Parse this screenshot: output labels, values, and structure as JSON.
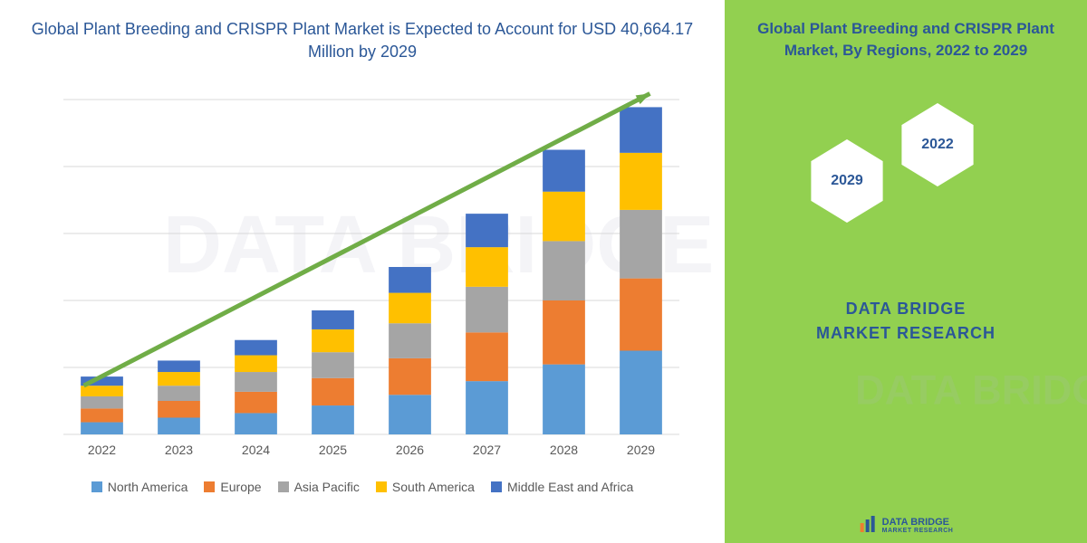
{
  "chart": {
    "type": "stacked-bar",
    "title": "Global Plant Breeding and CRISPR Plant Market is Expected to Account for USD 40,664.17 Million by 2029",
    "title_color": "#2b5797",
    "title_fontsize": 18,
    "categories": [
      "2022",
      "2023",
      "2024",
      "2025",
      "2026",
      "2027",
      "2028",
      "2029"
    ],
    "series": [
      {
        "name": "North America",
        "color": "#5b9bd5",
        "values": [
          16,
          22,
          28,
          38,
          52,
          70,
          92,
          110
        ]
      },
      {
        "name": "Europe",
        "color": "#ed7d31",
        "values": [
          18,
          22,
          28,
          36,
          48,
          64,
          84,
          95
        ]
      },
      {
        "name": "Asia Pacific",
        "color": "#a5a5a5",
        "values": [
          16,
          20,
          26,
          34,
          46,
          60,
          78,
          90
        ]
      },
      {
        "name": "South America",
        "color": "#ffc000",
        "values": [
          14,
          18,
          22,
          30,
          40,
          52,
          65,
          75
        ]
      },
      {
        "name": "Middle East and Africa",
        "color": "#4472c4",
        "values": [
          12,
          15,
          20,
          25,
          34,
          44,
          55,
          60
        ]
      }
    ],
    "axis_label_fontsize": 14,
    "axis_label_color": "#595959",
    "background_color": "#ffffff",
    "gridline_color": "#d9d9d9",
    "ylim": [
      0,
      440
    ],
    "bar_width": 0.55,
    "arrow_color": "#70ad47",
    "arrow_stroke_width": 5,
    "legend_fontsize": 14,
    "legend_color": "#595959"
  },
  "side": {
    "title": "Global Plant Breeding and CRISPR Plant Market, By Regions, 2022 to 2029",
    "title_color": "#2b5797",
    "title_fontsize": 17,
    "background_color": "#92d050",
    "hex_fill": "#ffffff",
    "hex_stroke": "#92d050",
    "hex_stroke_width": 4,
    "hex_label_color": "#2b5797",
    "hex1_label": "2029",
    "hex2_label": "2022",
    "brand_line1": "DATA BRIDGE",
    "brand_line2": "MARKET RESEARCH",
    "brand_color": "#2b5797",
    "brand_fontsize": 18
  },
  "watermark": {
    "text": "DATA BRIDGE",
    "color": "rgba(180,180,200,0.15)"
  },
  "footer": {
    "text": "DATA BRIDGE",
    "subtext": "MARKET RESEARCH",
    "icon_color1": "#2b5797",
    "icon_color2": "#ed7d31"
  }
}
